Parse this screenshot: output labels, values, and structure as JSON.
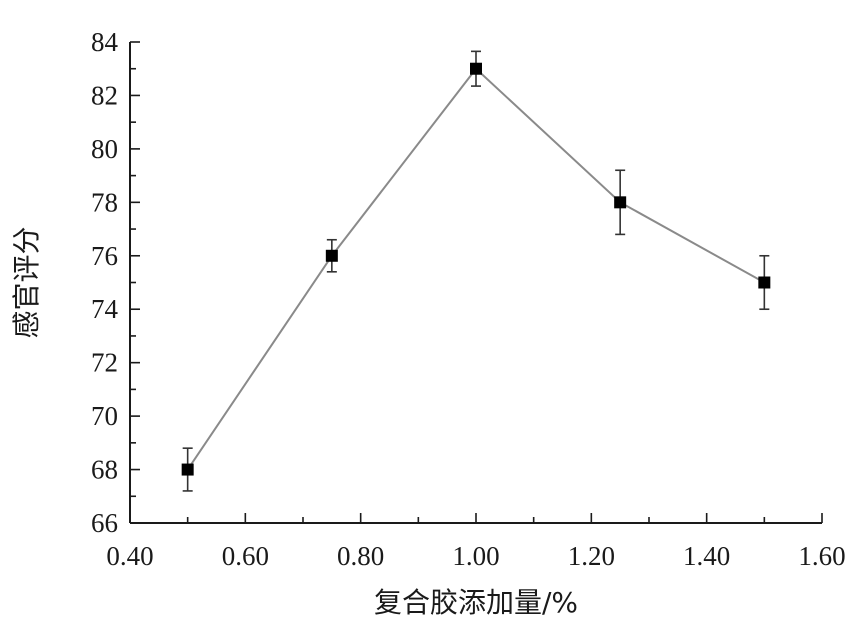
{
  "chart_data": {
    "type": "line",
    "xlabel": "复合胶添加量/%",
    "ylabel": "感官评分",
    "xlim": [
      0.4,
      1.6
    ],
    "ylim": [
      66,
      84
    ],
    "xticks": [
      "0.40",
      "0.60",
      "0.80",
      "1.00",
      "1.20",
      "1.40",
      "1.60"
    ],
    "yticks": [
      "66",
      "68",
      "70",
      "72",
      "74",
      "76",
      "78",
      "80",
      "82",
      "84"
    ],
    "series": [
      {
        "x": [
          0.5,
          0.75,
          1.0,
          1.25,
          1.5
        ],
        "y": [
          68,
          76,
          83,
          78,
          75
        ],
        "error": [
          0.8,
          0.6,
          0.65,
          1.2,
          1.0
        ],
        "marker": "square",
        "line_color": "#8a8a8a",
        "marker_color": "#000000"
      }
    ],
    "grid": false,
    "legend": "none"
  }
}
